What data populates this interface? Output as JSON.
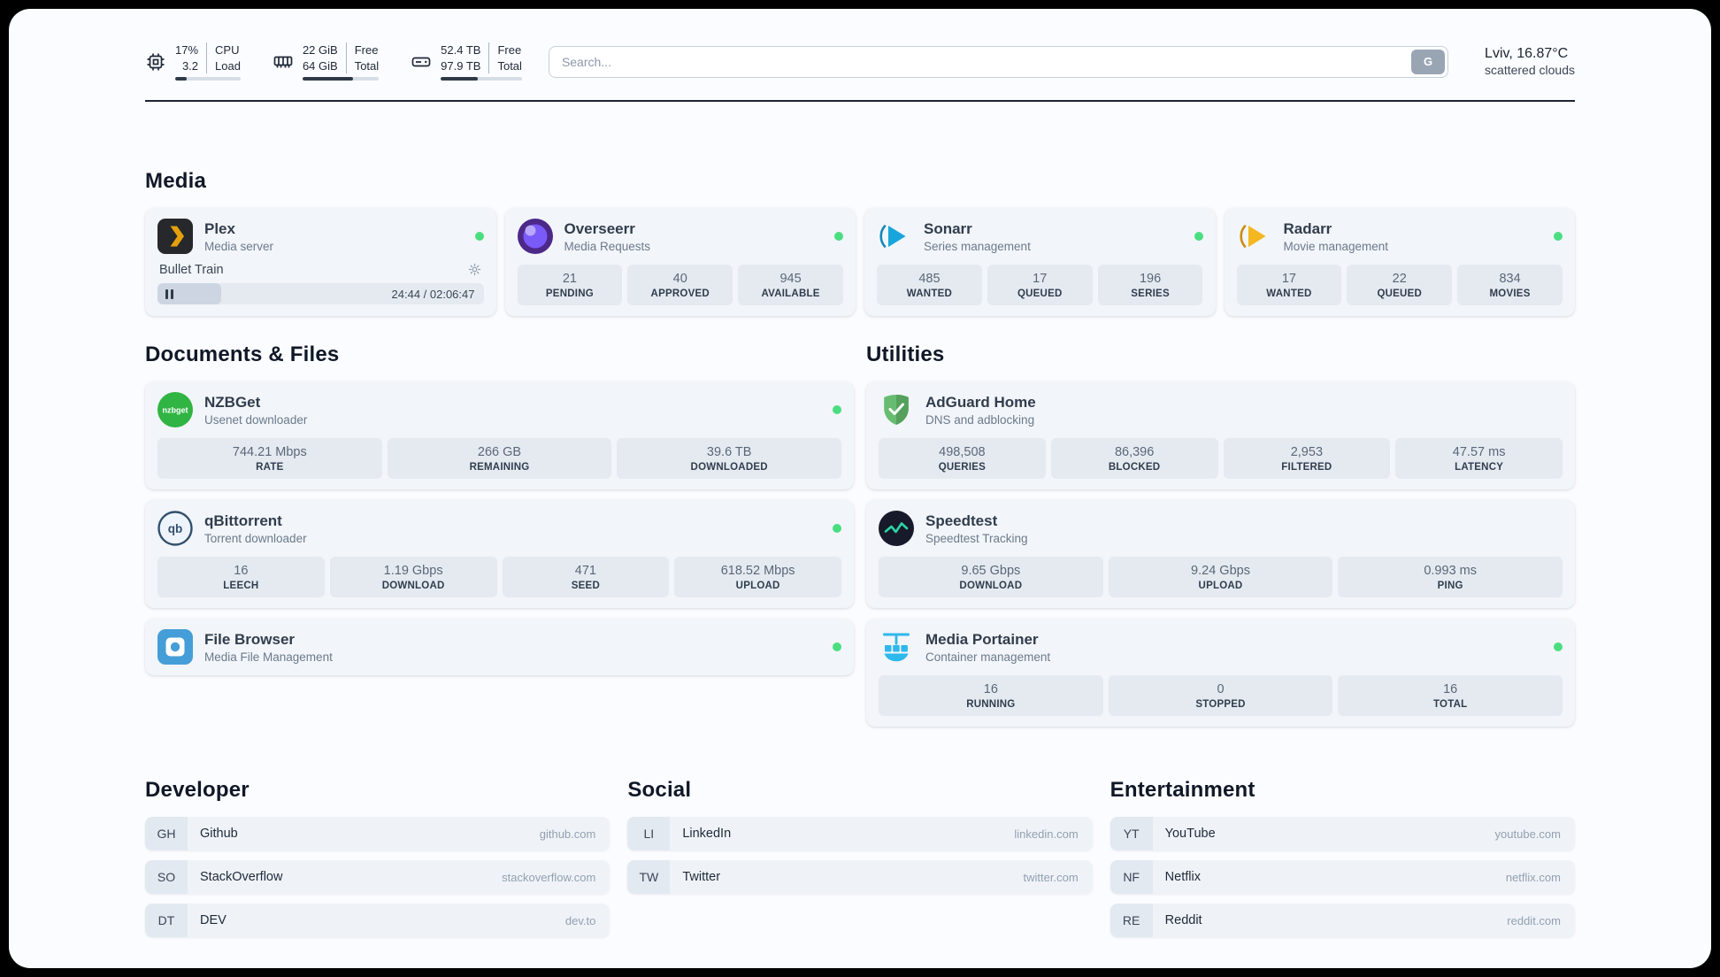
{
  "topbar": {
    "resources": [
      {
        "icon": "cpu-icon",
        "col1": [
          "17%",
          "3.2"
        ],
        "col2": [
          "CPU",
          "Load"
        ],
        "progress": 17
      },
      {
        "icon": "memory-icon",
        "col1": [
          "22 GiB",
          "64 GiB"
        ],
        "col2": [
          "Free",
          "Total"
        ],
        "progress": 66
      },
      {
        "icon": "disk-icon",
        "col1": [
          "52.4 TB",
          "97.9 TB"
        ],
        "col2": [
          "Free",
          "Total"
        ],
        "progress": 46
      }
    ],
    "search": {
      "placeholder": "Search...",
      "button_label": "G"
    },
    "weather": {
      "icon": "cloud-icon",
      "line1": "Lviv, 16.87°C",
      "line2": "scattered clouds"
    }
  },
  "service_groups": [
    {
      "title": "Media",
      "services": [
        {
          "icon": "plex-icon",
          "name": "Plex",
          "desc": "Media server",
          "online": true,
          "player": {
            "title": "Bullet Train",
            "time": "24:44 / 02:06:47",
            "progress_pct": 19.5
          }
        },
        {
          "icon": "overseerr-icon",
          "name": "Overseerr",
          "desc": "Media Requests",
          "online": true,
          "stats": [
            {
              "value": "21",
              "label": "PENDING"
            },
            {
              "value": "40",
              "label": "APPROVED"
            },
            {
              "value": "945",
              "label": "AVAILABLE"
            }
          ]
        },
        {
          "icon": "sonarr-icon",
          "name": "Sonarr",
          "desc": "Series management",
          "online": true,
          "stats": [
            {
              "value": "485",
              "label": "WANTED"
            },
            {
              "value": "17",
              "label": "QUEUED"
            },
            {
              "value": "196",
              "label": "SERIES"
            }
          ]
        },
        {
          "icon": "radarr-icon",
          "name": "Radarr",
          "desc": "Movie management",
          "online": true,
          "stats": [
            {
              "value": "17",
              "label": "WANTED"
            },
            {
              "value": "22",
              "label": "QUEUED"
            },
            {
              "value": "834",
              "label": "MOVIES"
            }
          ]
        }
      ]
    },
    {
      "title": "Documents & Files",
      "services": [
        {
          "icon": "nzbget-icon",
          "name": "NZBGet",
          "desc": "Usenet downloader",
          "online": true,
          "stats": [
            {
              "value": "744.21 Mbps",
              "label": "RATE"
            },
            {
              "value": "266 GB",
              "label": "REMAINING"
            },
            {
              "value": "39.6 TB",
              "label": "DOWNLOADED"
            }
          ]
        },
        {
          "icon": "qbittorrent-icon",
          "name": "qBittorrent",
          "desc": "Torrent downloader",
          "online": true,
          "stats": [
            {
              "value": "16",
              "label": "LEECH"
            },
            {
              "value": "1.19 Gbps",
              "label": "DOWNLOAD"
            },
            {
              "value": "471",
              "label": "SEED"
            },
            {
              "value": "618.52 Mbps",
              "label": "UPLOAD"
            }
          ]
        },
        {
          "icon": "filebrowser-icon",
          "name": "File Browser",
          "desc": "Media File Management",
          "online": true,
          "stats": []
        }
      ]
    },
    {
      "title": "Utilities",
      "services": [
        {
          "icon": "adguard-icon",
          "name": "AdGuard Home",
          "desc": "DNS and adblocking",
          "online": false,
          "stats": [
            {
              "value": "498,508",
              "label": "QUERIES"
            },
            {
              "value": "86,396",
              "label": "BLOCKED"
            },
            {
              "value": "2,953",
              "label": "FILTERED"
            },
            {
              "value": "47.57 ms",
              "label": "LATENCY"
            }
          ]
        },
        {
          "icon": "speedtest-icon",
          "name": "Speedtest",
          "desc": "Speedtest Tracking",
          "online": false,
          "stats": [
            {
              "value": "9.65 Gbps",
              "label": "DOWNLOAD"
            },
            {
              "value": "9.24 Gbps",
              "label": "UPLOAD"
            },
            {
              "value": "0.993 ms",
              "label": "PING"
            }
          ]
        },
        {
          "icon": "portainer-icon",
          "name": "Media Portainer",
          "desc": "Container management",
          "online": true,
          "stats": [
            {
              "value": "16",
              "label": "RUNNING"
            },
            {
              "value": "0",
              "label": "STOPPED"
            },
            {
              "value": "16",
              "label": "TOTAL"
            }
          ]
        }
      ]
    }
  ],
  "bookmark_groups": [
    {
      "title": "Developer",
      "links": [
        {
          "abbr": "GH",
          "name": "Github",
          "url": "github.com"
        },
        {
          "abbr": "SO",
          "name": "StackOverflow",
          "url": "stackoverflow.com"
        },
        {
          "abbr": "DT",
          "name": "DEV",
          "url": "dev.to"
        }
      ]
    },
    {
      "title": "Social",
      "links": [
        {
          "abbr": "LI",
          "name": "LinkedIn",
          "url": "linkedin.com"
        },
        {
          "abbr": "TW",
          "name": "Twitter",
          "url": "twitter.com"
        }
      ]
    },
    {
      "title": "Entertainment",
      "links": [
        {
          "abbr": "YT",
          "name": "YouTube",
          "url": "youtube.com"
        },
        {
          "abbr": "NF",
          "name": "Netflix",
          "url": "netflix.com"
        },
        {
          "abbr": "RE",
          "name": "Reddit",
          "url": "reddit.com"
        }
      ]
    }
  ],
  "colors": {
    "status_online": "#4ade80",
    "progress_fill": "#2f3a47",
    "rule": "#1b2430"
  }
}
